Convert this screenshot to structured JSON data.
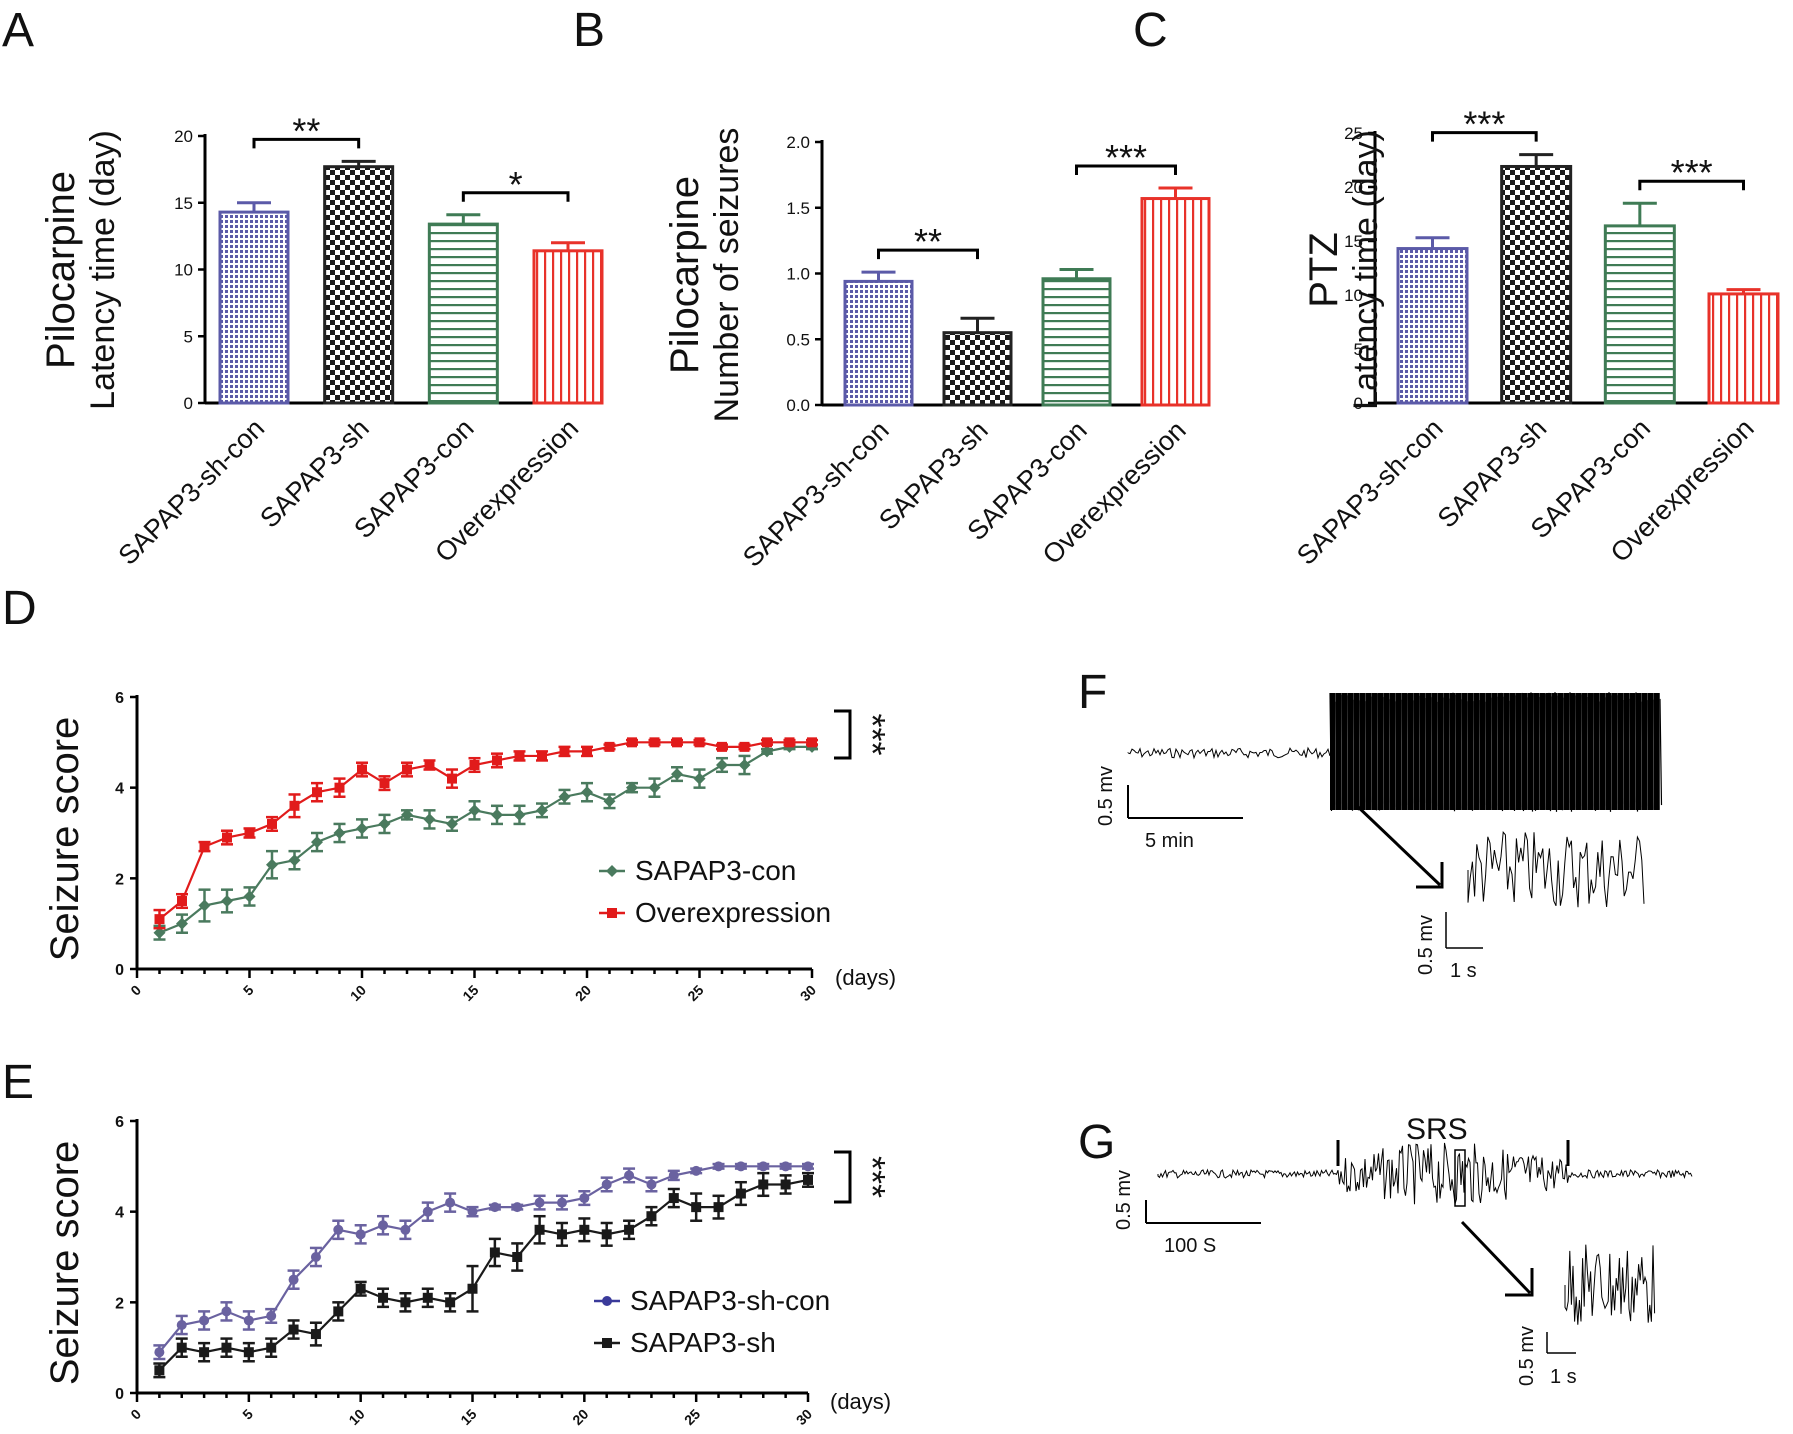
{
  "figure": {
    "panel_labels": [
      "A",
      "B",
      "C",
      "D",
      "E",
      "F",
      "G"
    ]
  },
  "chart_data": [
    {
      "panel": "A",
      "type": "bar",
      "title": "",
      "ylabel_top": "Pilocarpine",
      "ylabel": "Latency time (day)",
      "categories": [
        "SAPAP3-sh-con",
        "SAPAP3-sh",
        "SAPAP3-con",
        "Overexpression"
      ],
      "values": [
        14.3,
        17.7,
        13.4,
        11.4
      ],
      "errors": [
        0.7,
        0.4,
        0.7,
        0.6
      ],
      "colors": [
        "#5b5aa8",
        "#222222",
        "#3f7b55",
        "#e8322a"
      ],
      "patterns": [
        "dots",
        "checker",
        "hstripes",
        "vstripes"
      ],
      "ylim": [
        0,
        20
      ],
      "yticks": [
        0,
        5,
        10,
        15,
        20
      ],
      "significance": [
        {
          "from": 0,
          "to": 1,
          "label": "**"
        },
        {
          "from": 2,
          "to": 3,
          "label": "*"
        }
      ]
    },
    {
      "panel": "B",
      "type": "bar",
      "title": "",
      "ylabel_top": "Pilocarpine",
      "ylabel": "Number of seizures",
      "categories": [
        "SAPAP3-sh-con",
        "SAPAP3-sh",
        "SAPAP3-con",
        "Overexpression"
      ],
      "values": [
        0.94,
        0.55,
        0.96,
        1.57
      ],
      "errors": [
        0.07,
        0.11,
        0.07,
        0.08
      ],
      "colors": [
        "#5b5aa8",
        "#222222",
        "#3f7b55",
        "#e8322a"
      ],
      "patterns": [
        "dots",
        "checker",
        "hstripes",
        "vstripes"
      ],
      "ylim": [
        0,
        2.0
      ],
      "yticks": [
        0.0,
        0.5,
        1.0,
        1.5,
        2.0
      ],
      "ytick_labels": [
        "0.0",
        "0.5",
        "1.0",
        "1.5",
        "2.0"
      ],
      "significance": [
        {
          "from": 0,
          "to": 1,
          "label": "**"
        },
        {
          "from": 2,
          "to": 3,
          "label": "***"
        }
      ]
    },
    {
      "panel": "C",
      "type": "bar",
      "title": "",
      "ylabel_top": "PTZ",
      "ylabel": "Latency time (day)",
      "categories": [
        "SAPAP3-sh-con",
        "SAPAP3-sh",
        "SAPAP3-con",
        "Overexpression"
      ],
      "values": [
        14.3,
        21.9,
        16.4,
        10.1
      ],
      "errors": [
        1.0,
        1.1,
        2.1,
        0.4
      ],
      "colors": [
        "#5b5aa8",
        "#222222",
        "#3f7b55",
        "#e8322a"
      ],
      "patterns": [
        "dots",
        "checker",
        "hstripes",
        "vstripes"
      ],
      "ylim": [
        0,
        25
      ],
      "yticks": [
        0,
        5,
        10,
        15,
        20,
        25
      ],
      "significance": [
        {
          "from": 0,
          "to": 1,
          "label": "***"
        },
        {
          "from": 2,
          "to": 3,
          "label": "***"
        }
      ]
    },
    {
      "panel": "D",
      "type": "line",
      "ylabel": "Seizure score",
      "xlabel": "(days)",
      "xlim": [
        0,
        30
      ],
      "xticks": [
        0,
        5,
        10,
        15,
        20,
        25,
        30
      ],
      "ylim": [
        0,
        6
      ],
      "yticks": [
        0,
        2,
        4,
        6
      ],
      "significance": "***",
      "x": [
        1,
        2,
        3,
        4,
        5,
        6,
        7,
        8,
        9,
        10,
        11,
        12,
        13,
        14,
        15,
        16,
        17,
        18,
        19,
        20,
        21,
        22,
        23,
        24,
        25,
        26,
        27,
        28,
        29,
        30
      ],
      "series": [
        {
          "name": "SAPAP3-con",
          "color": "#4a7a5e",
          "marker": "diamond",
          "values": [
            0.8,
            1.0,
            1.4,
            1.5,
            1.6,
            2.3,
            2.4,
            2.8,
            3.0,
            3.1,
            3.2,
            3.4,
            3.3,
            3.2,
            3.5,
            3.4,
            3.4,
            3.5,
            3.8,
            3.9,
            3.7,
            4.0,
            4.0,
            4.3,
            4.2,
            4.5,
            4.5,
            4.8,
            4.9,
            4.9
          ],
          "errors": [
            0.15,
            0.2,
            0.35,
            0.25,
            0.2,
            0.3,
            0.2,
            0.2,
            0.2,
            0.2,
            0.2,
            0.1,
            0.2,
            0.15,
            0.2,
            0.2,
            0.2,
            0.15,
            0.15,
            0.2,
            0.15,
            0.1,
            0.2,
            0.15,
            0.2,
            0.15,
            0.2,
            0.05,
            0.05,
            0.05
          ]
        },
        {
          "name": "Overexpression",
          "color": "#e11b1b",
          "marker": "square",
          "values": [
            1.1,
            1.5,
            2.7,
            2.9,
            3.0,
            3.2,
            3.6,
            3.9,
            4.0,
            4.4,
            4.1,
            4.4,
            4.5,
            4.2,
            4.5,
            4.6,
            4.7,
            4.7,
            4.8,
            4.8,
            4.9,
            5.0,
            5.0,
            5.0,
            5.0,
            4.9,
            4.9,
            5.0,
            5.0,
            5.0
          ],
          "errors": [
            0.2,
            0.15,
            0.1,
            0.15,
            0.1,
            0.15,
            0.25,
            0.2,
            0.2,
            0.15,
            0.15,
            0.15,
            0.1,
            0.2,
            0.15,
            0.15,
            0.1,
            0.1,
            0.1,
            0.1,
            0.05,
            0.05,
            0.05,
            0.05,
            0.05,
            0.05,
            0.05,
            0.05,
            0.05,
            0.05
          ]
        }
      ]
    },
    {
      "panel": "E",
      "type": "line",
      "ylabel": "Seizure score",
      "xlabel": "(days)",
      "xlim": [
        0,
        30
      ],
      "xticks": [
        0,
        5,
        10,
        15,
        20,
        25,
        30
      ],
      "ylim": [
        0,
        6
      ],
      "yticks": [
        0,
        2,
        4,
        6
      ],
      "significance": "***",
      "x": [
        1,
        2,
        3,
        4,
        5,
        6,
        7,
        8,
        9,
        10,
        11,
        12,
        13,
        14,
        15,
        16,
        17,
        18,
        19,
        20,
        21,
        22,
        23,
        24,
        25,
        26,
        27,
        28,
        29,
        30
      ],
      "series": [
        {
          "name": "SAPAP3-sh-con",
          "color": "#6a62a0",
          "legend_color": "#3a3a9a",
          "marker": "circle",
          "values": [
            0.9,
            1.5,
            1.6,
            1.8,
            1.6,
            1.7,
            2.5,
            3.0,
            3.6,
            3.5,
            3.7,
            3.6,
            4.0,
            4.2,
            4.0,
            4.1,
            4.1,
            4.2,
            4.2,
            4.3,
            4.6,
            4.8,
            4.6,
            4.8,
            4.9,
            5.0,
            5.0,
            5.0,
            5.0,
            5.0
          ],
          "errors": [
            0.15,
            0.2,
            0.2,
            0.2,
            0.2,
            0.15,
            0.2,
            0.2,
            0.2,
            0.2,
            0.2,
            0.2,
            0.2,
            0.2,
            0.1,
            0.05,
            0.05,
            0.15,
            0.15,
            0.15,
            0.15,
            0.15,
            0.15,
            0.1,
            0.05,
            0.05,
            0.05,
            0.05,
            0.05,
            0.05
          ]
        },
        {
          "name": "SAPAP3-sh",
          "color": "#1a1a1a",
          "marker": "square",
          "values": [
            0.5,
            1.0,
            0.9,
            1.0,
            0.9,
            1.0,
            1.4,
            1.3,
            1.8,
            2.3,
            2.1,
            2.0,
            2.1,
            2.0,
            2.3,
            3.1,
            3.0,
            3.6,
            3.5,
            3.6,
            3.5,
            3.6,
            3.9,
            4.3,
            4.1,
            4.1,
            4.4,
            4.6,
            4.6,
            4.7
          ],
          "errors": [
            0.15,
            0.2,
            0.2,
            0.2,
            0.2,
            0.2,
            0.2,
            0.25,
            0.2,
            0.15,
            0.2,
            0.2,
            0.2,
            0.2,
            0.5,
            0.3,
            0.3,
            0.3,
            0.25,
            0.25,
            0.25,
            0.2,
            0.2,
            0.2,
            0.3,
            0.25,
            0.25,
            0.25,
            0.2,
            0.15
          ]
        }
      ]
    }
  ],
  "traces": {
    "F": {
      "scale_main_y": "0.5 mv",
      "scale_main_x": "5 min",
      "scale_inset_y": "0.5 mv",
      "scale_inset_x": "1 s"
    },
    "G": {
      "event_label": "SRS",
      "scale_main_y": "0.5 mv",
      "scale_main_x": "100 S",
      "scale_inset_y": "0.5 mv",
      "scale_inset_x": "1 s"
    }
  }
}
